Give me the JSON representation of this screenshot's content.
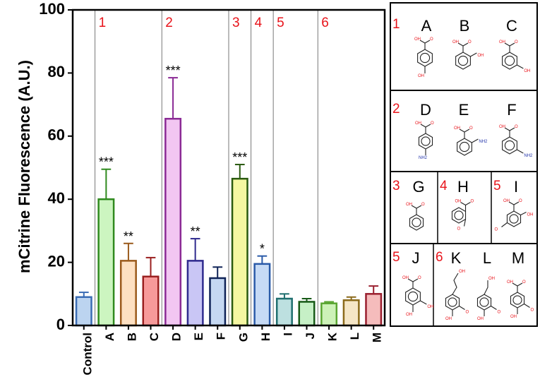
{
  "chart_data": {
    "type": "bar",
    "ylabel": "mCitrine Fluorescence (A.U.)",
    "ylim": [
      0,
      100
    ],
    "yticks": [
      0,
      20,
      40,
      60,
      80,
      100
    ],
    "categories": [
      "Control",
      "A",
      "B",
      "C",
      "D",
      "E",
      "F",
      "G",
      "H",
      "I",
      "J",
      "K",
      "L",
      "M"
    ],
    "values": [
      9,
      40,
      20.5,
      15.5,
      65.5,
      20.5,
      15,
      46.5,
      19.5,
      8.5,
      7.5,
      7,
      8,
      10
    ],
    "errors": [
      1.5,
      9.5,
      5.5,
      6,
      13,
      7,
      3.5,
      4.5,
      2.5,
      1.5,
      1,
      0.5,
      1,
      2.5
    ],
    "significance": [
      "",
      "***",
      "**",
      "",
      "***",
      "**",
      "",
      "***",
      "*",
      "",
      "",
      "",
      "",
      ""
    ],
    "fill_colors": [
      "#bcd4f0",
      "#ccf5c0",
      "#fde0c2",
      "#f79a9a",
      "#f2c6f2",
      "#c9c6f5",
      "#c5d8f2",
      "#f5f7a2",
      "#c6daf5",
      "#bde0e0",
      "#c6f0c6",
      "#cdf2b8",
      "#f5e6c6",
      "#f5bcbc"
    ],
    "edge_colors": [
      "#3b6db5",
      "#2f8a1e",
      "#9a5a1c",
      "#9a1f1f",
      "#8b2a95",
      "#2f2a8e",
      "#0f2357",
      "#2a5a10",
      "#2a5aa8",
      "#1f6f6f",
      "#175a17",
      "#5aa632",
      "#8b6a1a",
      "#9a1f2f"
    ],
    "groups": [
      {
        "label": "1",
        "start": 1
      },
      {
        "label": "2",
        "start": 4
      },
      {
        "label": "3",
        "start": 7
      },
      {
        "label": "4",
        "start": 8
      },
      {
        "label": "5",
        "start": 9
      },
      {
        "label": "6",
        "start": 11
      }
    ]
  },
  "structures_panel": {
    "rows": [
      {
        "items": [
          {
            "num": "1",
            "letter": "A"
          },
          {
            "num": "",
            "letter": "B"
          },
          {
            "num": "",
            "letter": "C"
          }
        ]
      },
      {
        "items": [
          {
            "num": "2",
            "letter": "D"
          },
          {
            "num": "",
            "letter": "E"
          },
          {
            "num": "",
            "letter": "F"
          }
        ]
      },
      {
        "items": [
          {
            "num": "3",
            "letter": "G"
          },
          {
            "num": "4",
            "letter": "H"
          },
          {
            "num": "5",
            "letter": "I"
          }
        ]
      },
      {
        "items": [
          {
            "num": "5",
            "letter": "J"
          },
          {
            "num": "6",
            "letter": "K"
          },
          {
            "num": "",
            "letter": "L"
          },
          {
            "num": "",
            "letter": "M"
          }
        ]
      }
    ],
    "atom_labels": {
      "oxygen": "O",
      "hydroxyl": "OH",
      "carboxyl_oh": "OH",
      "amine": "NH2"
    }
  }
}
